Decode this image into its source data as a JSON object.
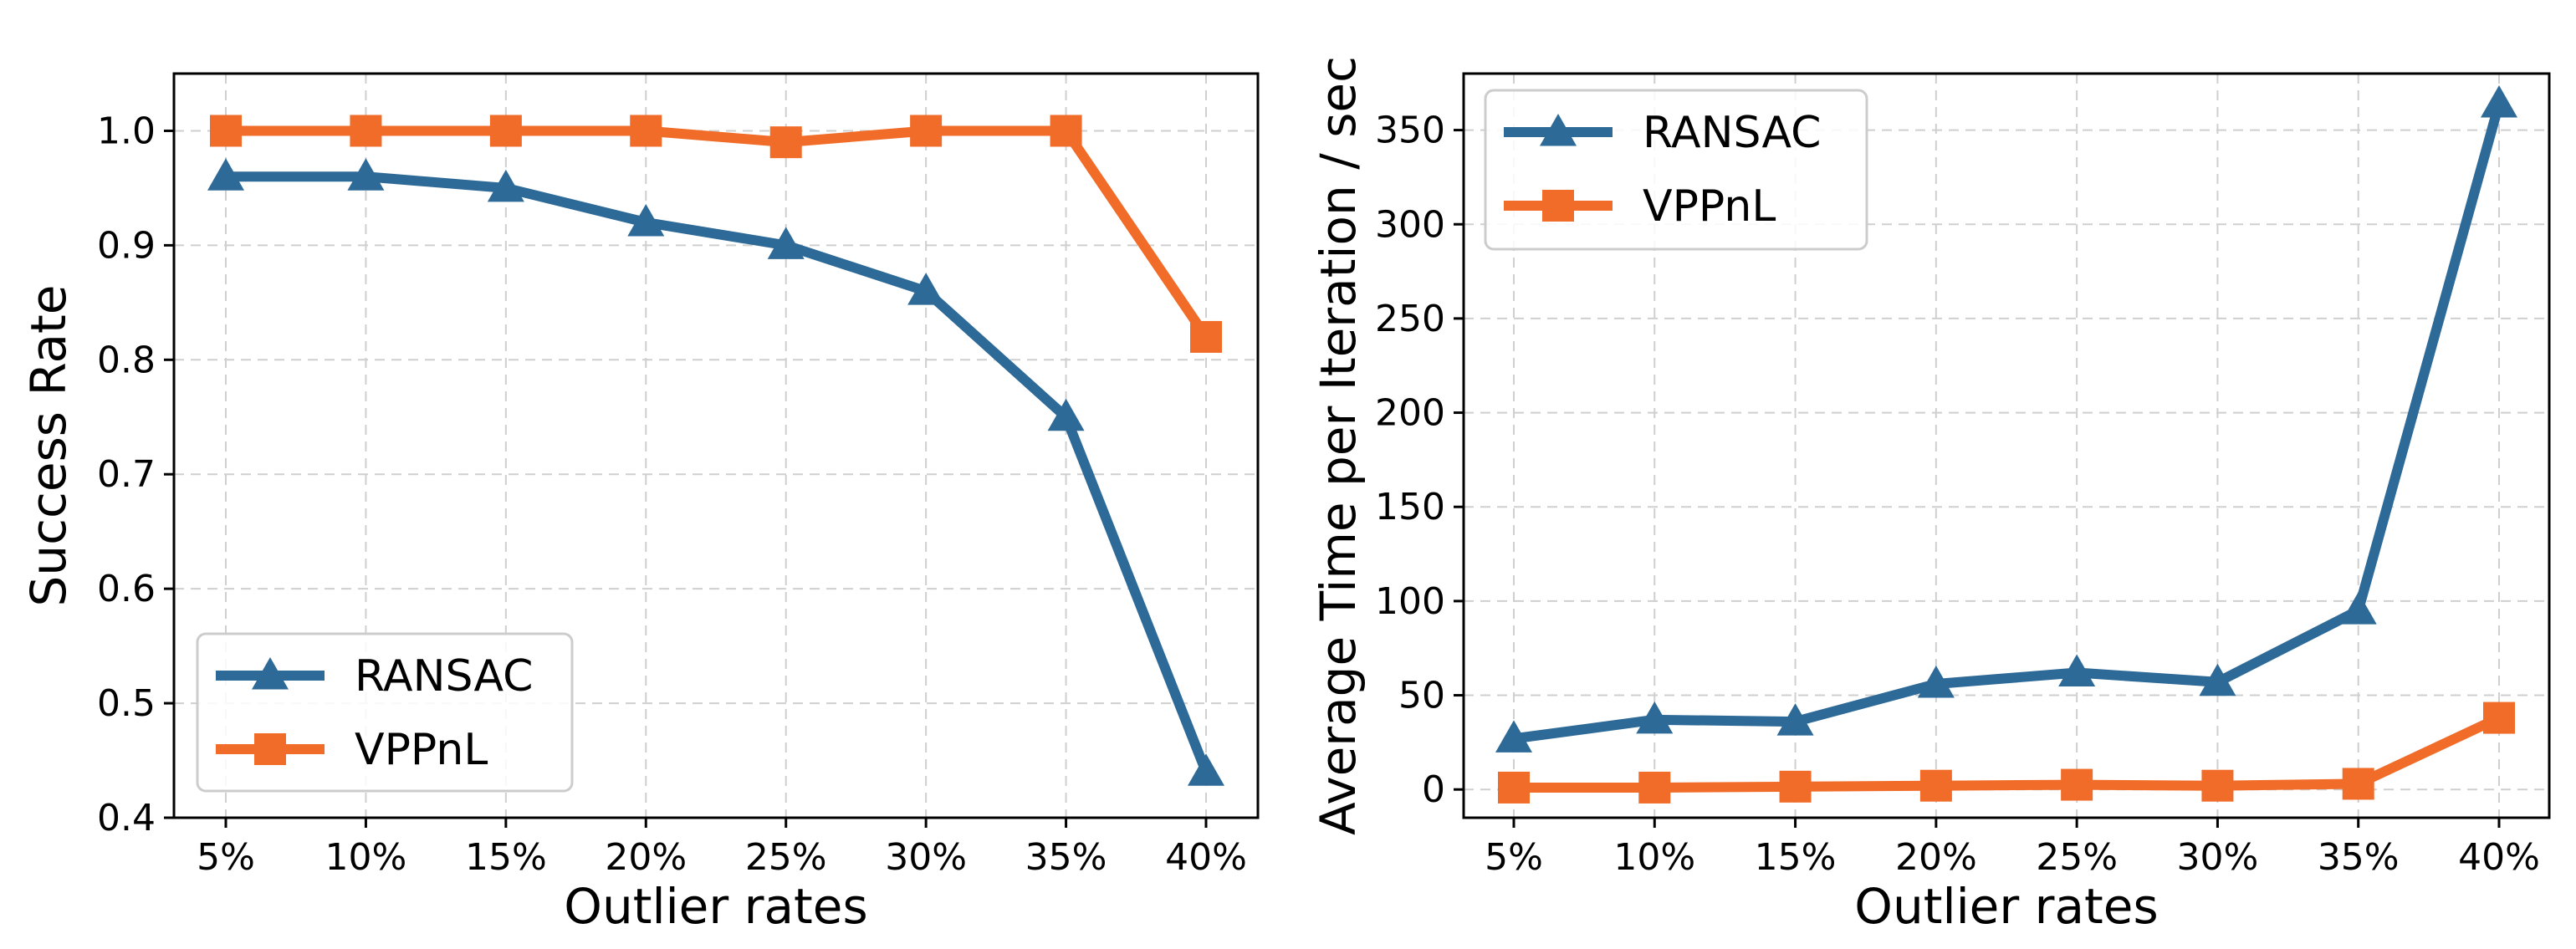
{
  "colors": {
    "RANSAC": "#2e6a98",
    "VPPnL": "#f06c28"
  },
  "chart_data": [
    {
      "type": "line",
      "categories": [
        "5%",
        "10%",
        "15%",
        "20%",
        "25%",
        "30%",
        "35%",
        "40%"
      ],
      "series": [
        {
          "name": "RANSAC",
          "marker": "triangle",
          "values": [
            0.96,
            0.96,
            0.95,
            0.92,
            0.9,
            0.86,
            0.75,
            0.44
          ]
        },
        {
          "name": "VPPnL",
          "marker": "square",
          "values": [
            1.0,
            1.0,
            1.0,
            1.0,
            0.99,
            1.0,
            1.0,
            0.82
          ]
        }
      ],
      "xlabel": "Outlier rates",
      "ylabel": "Success Rate",
      "ylim": [
        0.4,
        1.05
      ],
      "yticks": [
        "0.4",
        "0.5",
        "0.6",
        "0.7",
        "0.8",
        "0.9",
        "1.0"
      ],
      "ytick_values": [
        0.4,
        0.5,
        0.6,
        0.7,
        0.8,
        0.9,
        1.0
      ],
      "legend": "lower-left",
      "grid": true
    },
    {
      "type": "line",
      "categories": [
        "5%",
        "10%",
        "15%",
        "20%",
        "25%",
        "30%",
        "35%",
        "40%"
      ],
      "series": [
        {
          "name": "RANSAC",
          "marker": "triangle",
          "values": [
            27,
            37,
            36,
            56,
            62,
            57,
            95,
            364
          ]
        },
        {
          "name": "VPPnL",
          "marker": "square",
          "values": [
            1,
            1,
            1.5,
            2,
            2.5,
            2,
            3,
            38
          ]
        }
      ],
      "xlabel": "Outlier rates",
      "ylabel": "Average Time per Iteration / sec",
      "ylim": [
        -15,
        380
      ],
      "yticks": [
        "0",
        "50",
        "100",
        "150",
        "200",
        "250",
        "300",
        "350"
      ],
      "ytick_values": [
        0,
        50,
        100,
        150,
        200,
        250,
        300,
        350
      ],
      "legend": "top-left",
      "grid": true
    }
  ]
}
